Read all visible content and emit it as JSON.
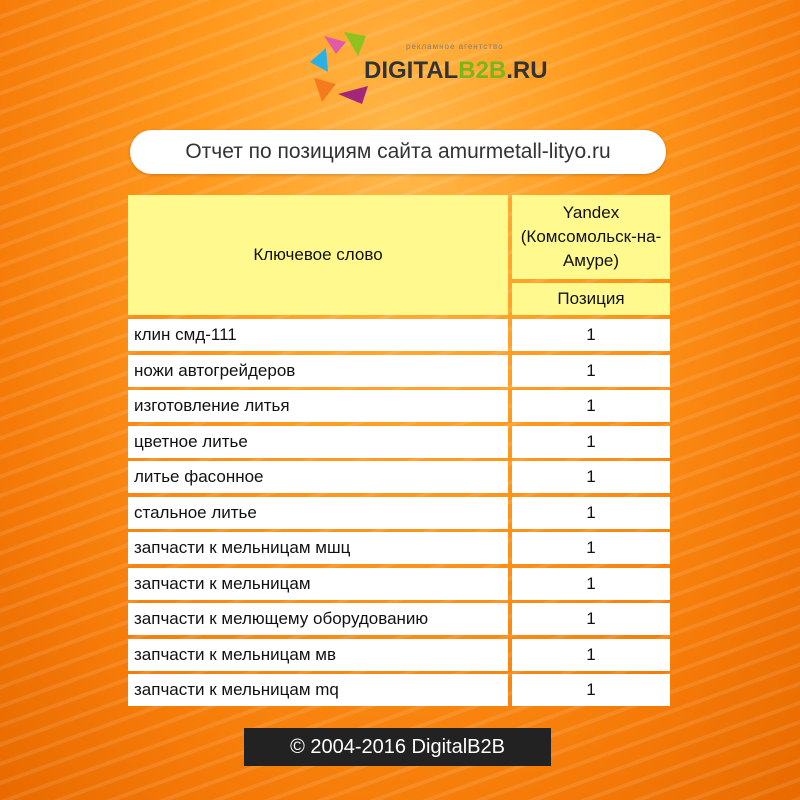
{
  "logo": {
    "brand_dark": "DIGITAL",
    "brand_green": "B2B",
    "brand_suffix": ".RU",
    "tagline": "рекламное агентство"
  },
  "title": "Отчет по позициям сайта amurmetall-lityo.ru",
  "table": {
    "header_keyword": "Ключевое слово",
    "header_engine": "Yandex (Комсомольск-на-Амуре)",
    "header_position": "Позиция",
    "rows": [
      {
        "keyword": "клин смд-111",
        "position": "1"
      },
      {
        "keyword": "ножи автогрейдеров",
        "position": "1"
      },
      {
        "keyword": "изготовление литья",
        "position": "1"
      },
      {
        "keyword": "цветное литье",
        "position": "1"
      },
      {
        "keyword": "литье фасонное",
        "position": "1"
      },
      {
        "keyword": "стальное литье",
        "position": "1"
      },
      {
        "keyword": "запчасти к мельницам мшц",
        "position": "1"
      },
      {
        "keyword": "запчасти к мельницам",
        "position": "1"
      },
      {
        "keyword": "запчасти к мелющему оборудованию",
        "position": "1"
      },
      {
        "keyword": "запчасти к мельницам мв",
        "position": "1"
      },
      {
        "keyword": "запчасти к мельницам mq",
        "position": "1"
      }
    ]
  },
  "footer": "© 2004-2016 DigitalB2B",
  "colors": {
    "background": "#f58a10",
    "header_cell": "#fff98e",
    "footer": "#222222",
    "logo_green": "#7cb518"
  }
}
